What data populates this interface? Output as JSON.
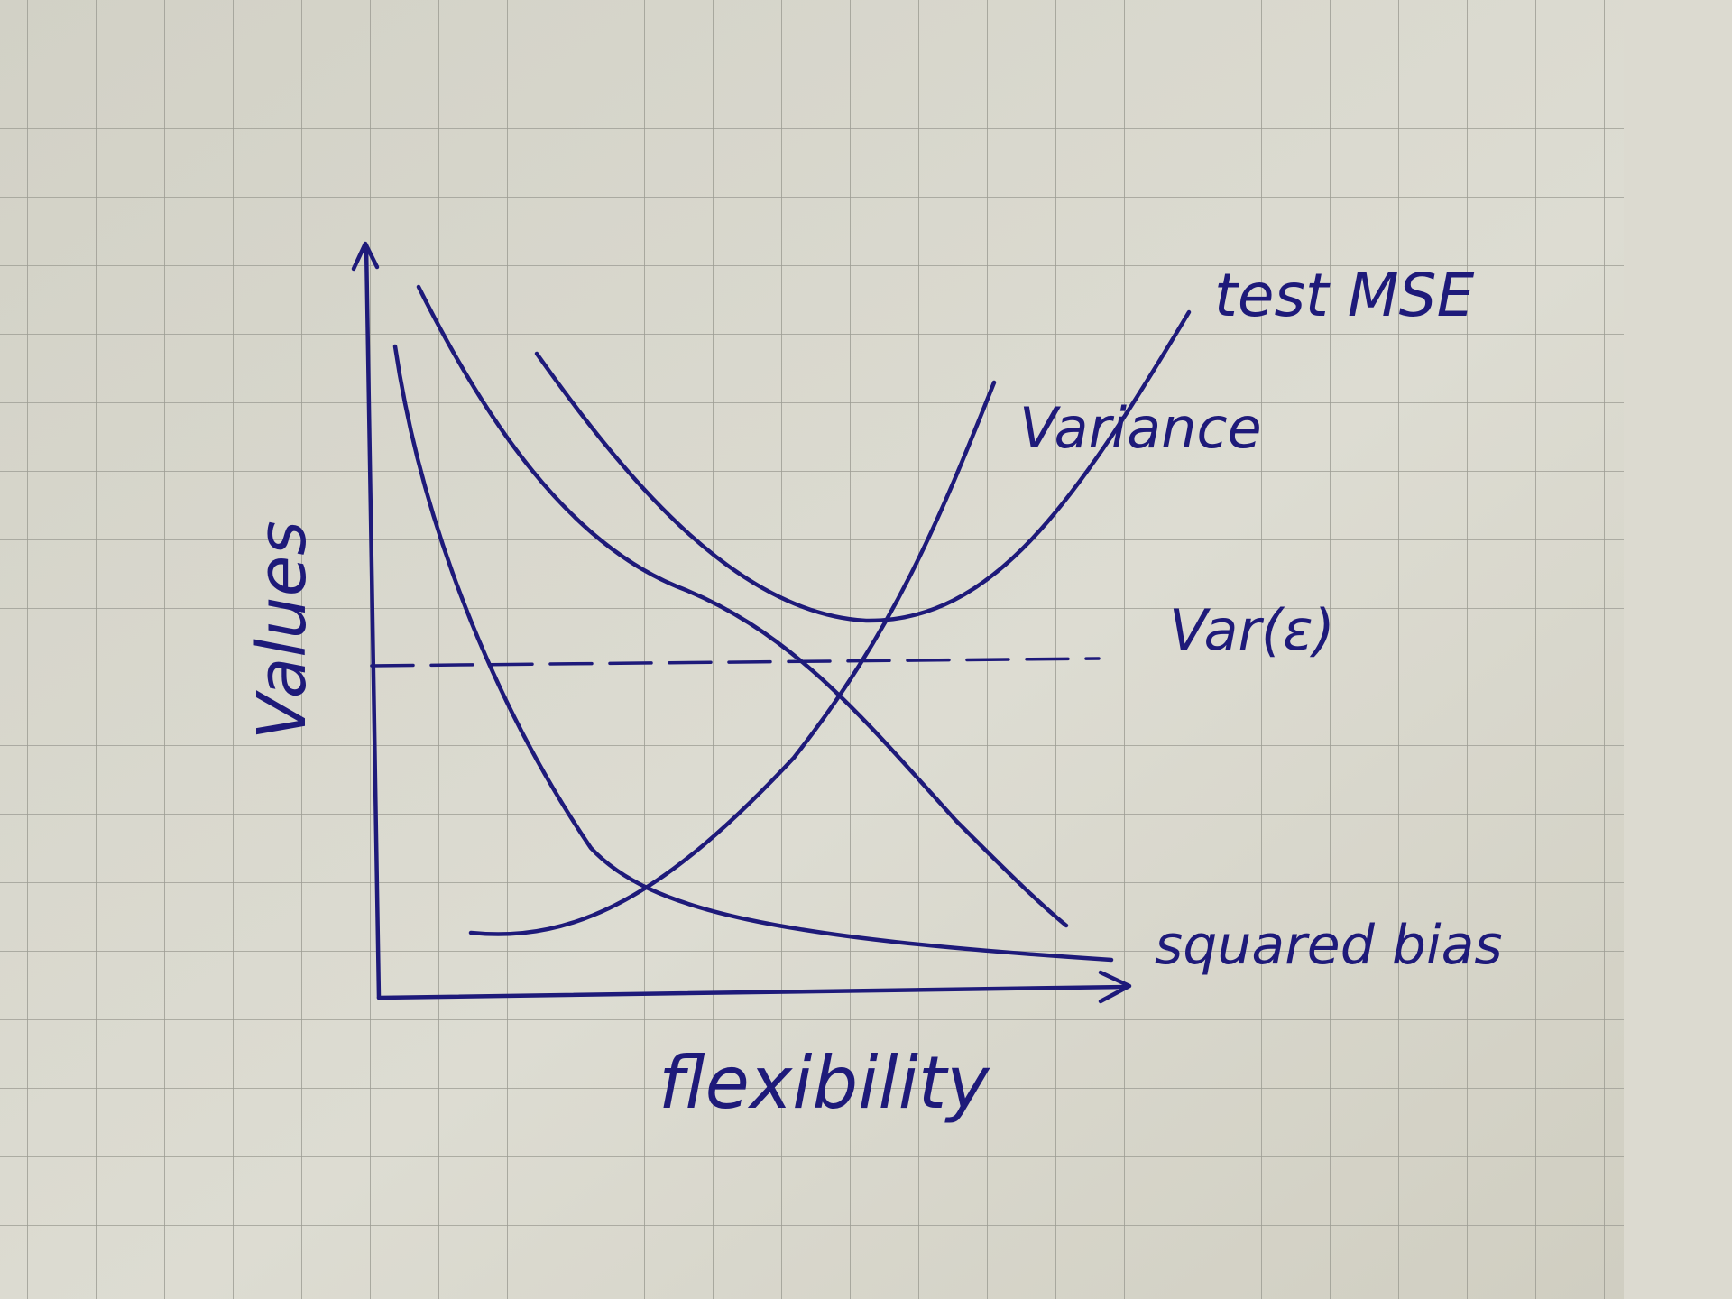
{
  "diagram": {
    "axes": {
      "x_label": "flexibility",
      "y_label": "Values"
    },
    "curves": [
      {
        "key": "test_mse",
        "label": "test MSE"
      },
      {
        "key": "variance",
        "label": "Variance"
      },
      {
        "key": "irreducible_error",
        "label": "Var(ε)",
        "style": "dashed"
      },
      {
        "key": "squared_bias",
        "label": "squared bias"
      }
    ],
    "colors": {
      "ink": "#1e1a7a",
      "paper": "#d9d8ce",
      "grid": "#9c9c93"
    }
  }
}
